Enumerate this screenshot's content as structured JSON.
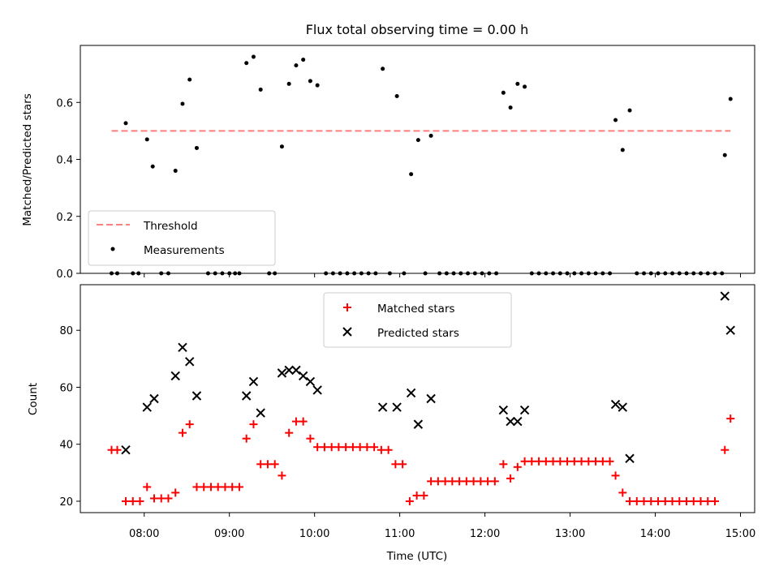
{
  "chart_data": [
    {
      "type": "scatter",
      "title": "Flux total observing time = 0.00 h",
      "xlabel": "",
      "ylabel": "Matched/Predicted stars",
      "xlim": [
        "07:15",
        "15:10"
      ],
      "ylim": [
        0,
        0.8
      ],
      "yticks": [
        "0.0",
        "0.2",
        "0.4",
        "0.6"
      ],
      "grid": false,
      "legend_position": "lower-left",
      "threshold": {
        "name": "Threshold",
        "value": 0.5,
        "x_start": "07:37",
        "x_end": "14:53",
        "color": "#ff7f7f",
        "style": "dashed"
      },
      "series": [
        {
          "name": "Measurements",
          "color": "#000000",
          "marker": "dot",
          "points": [
            [
              "07:37",
              0
            ],
            [
              "07:41",
              0
            ],
            [
              "07:47",
              0.527
            ],
            [
              "07:52",
              0
            ],
            [
              "07:56",
              0
            ],
            [
              "08:02",
              0.47
            ],
            [
              "08:06",
              0.375
            ],
            [
              "08:12",
              0
            ],
            [
              "08:17",
              0
            ],
            [
              "08:22",
              0.36
            ],
            [
              "08:27",
              0.595
            ],
            [
              "08:32",
              0.68
            ],
            [
              "08:37",
              0.44
            ],
            [
              "08:45",
              0
            ],
            [
              "08:50",
              0
            ],
            [
              "08:55",
              0
            ],
            [
              "09:00",
              0
            ],
            [
              "09:04",
              0
            ],
            [
              "09:07",
              0
            ],
            [
              "09:12",
              0.738
            ],
            [
              "09:17",
              0.76
            ],
            [
              "09:22",
              0.645
            ],
            [
              "09:28",
              0
            ],
            [
              "09:32",
              0
            ],
            [
              "09:37",
              0.445
            ],
            [
              "09:42",
              0.665
            ],
            [
              "09:47",
              0.73
            ],
            [
              "09:52",
              0.75
            ],
            [
              "09:57",
              0.675
            ],
            [
              "10:02",
              0.66
            ],
            [
              "10:08",
              0
            ],
            [
              "10:13",
              0
            ],
            [
              "10:18",
              0
            ],
            [
              "10:23",
              0
            ],
            [
              "10:28",
              0
            ],
            [
              "10:33",
              0
            ],
            [
              "10:38",
              0
            ],
            [
              "10:43",
              0
            ],
            [
              "10:48",
              0.718
            ],
            [
              "10:53",
              0
            ],
            [
              "10:58",
              0.622
            ],
            [
              "11:03",
              0
            ],
            [
              "11:08",
              0.348
            ],
            [
              "11:13",
              0.468
            ],
            [
              "11:18",
              0
            ],
            [
              "11:22",
              0.483
            ],
            [
              "11:28",
              0
            ],
            [
              "11:33",
              0
            ],
            [
              "11:38",
              0
            ],
            [
              "11:43",
              0
            ],
            [
              "11:48",
              0
            ],
            [
              "11:53",
              0
            ],
            [
              "11:58",
              0
            ],
            [
              "12:03",
              0
            ],
            [
              "12:08",
              0
            ],
            [
              "12:13",
              0.634
            ],
            [
              "12:18",
              0.582
            ],
            [
              "12:23",
              0.665
            ],
            [
              "12:28",
              0.655
            ],
            [
              "12:33",
              0
            ],
            [
              "12:38",
              0
            ],
            [
              "12:43",
              0
            ],
            [
              "12:48",
              0
            ],
            [
              "12:53",
              0
            ],
            [
              "12:58",
              0
            ],
            [
              "13:03",
              0
            ],
            [
              "13:08",
              0
            ],
            [
              "13:13",
              0
            ],
            [
              "13:18",
              0
            ],
            [
              "13:23",
              0
            ],
            [
              "13:28",
              0
            ],
            [
              "13:32",
              0.538
            ],
            [
              "13:37",
              0.433
            ],
            [
              "13:42",
              0.572
            ],
            [
              "13:47",
              0
            ],
            [
              "13:52",
              0
            ],
            [
              "13:57",
              0
            ],
            [
              "14:02",
              0
            ],
            [
              "14:07",
              0
            ],
            [
              "14:12",
              0
            ],
            [
              "14:17",
              0
            ],
            [
              "14:22",
              0
            ],
            [
              "14:27",
              0
            ],
            [
              "14:32",
              0
            ],
            [
              "14:37",
              0
            ],
            [
              "14:42",
              0
            ],
            [
              "14:47",
              0
            ],
            [
              "14:49",
              0.415
            ],
            [
              "14:53",
              0.612
            ]
          ]
        }
      ]
    },
    {
      "type": "scatter",
      "title": "",
      "xlabel": "Time (UTC)",
      "ylabel": "Count",
      "xlim": [
        "07:15",
        "15:10"
      ],
      "ylim": [
        16,
        96
      ],
      "xticks": [
        "08:00",
        "09:00",
        "10:00",
        "11:00",
        "12:00",
        "13:00",
        "14:00",
        "15:00"
      ],
      "yticks": [
        "20",
        "40",
        "60",
        "80"
      ],
      "grid": false,
      "legend_position": "upper-center",
      "series": [
        {
          "name": "Matched stars",
          "color": "#ff0000",
          "marker": "plus",
          "points": [
            [
              "07:37",
              38
            ],
            [
              "07:41",
              38
            ],
            [
              "07:47",
              20
            ],
            [
              "07:52",
              20
            ],
            [
              "07:57",
              20
            ],
            [
              "08:02",
              25
            ],
            [
              "08:07",
              21
            ],
            [
              "08:12",
              21
            ],
            [
              "08:17",
              21
            ],
            [
              "08:22",
              23
            ],
            [
              "08:27",
              44
            ],
            [
              "08:32",
              47
            ],
            [
              "08:37",
              25
            ],
            [
              "08:42",
              25
            ],
            [
              "08:47",
              25
            ],
            [
              "08:52",
              25
            ],
            [
              "08:57",
              25
            ],
            [
              "09:02",
              25
            ],
            [
              "09:07",
              25
            ],
            [
              "09:12",
              42
            ],
            [
              "09:17",
              47
            ],
            [
              "09:22",
              33
            ],
            [
              "09:27",
              33
            ],
            [
              "09:32",
              33
            ],
            [
              "09:37",
              29
            ],
            [
              "09:42",
              44
            ],
            [
              "09:47",
              48
            ],
            [
              "09:52",
              48
            ],
            [
              "09:57",
              42
            ],
            [
              "10:02",
              39
            ],
            [
              "10:07",
              39
            ],
            [
              "10:12",
              39
            ],
            [
              "10:17",
              39
            ],
            [
              "10:22",
              39
            ],
            [
              "10:27",
              39
            ],
            [
              "10:32",
              39
            ],
            [
              "10:37",
              39
            ],
            [
              "10:42",
              39
            ],
            [
              "10:47",
              38
            ],
            [
              "10:52",
              38
            ],
            [
              "10:57",
              33
            ],
            [
              "11:02",
              33
            ],
            [
              "11:07",
              20
            ],
            [
              "11:12",
              22
            ],
            [
              "11:17",
              22
            ],
            [
              "11:22",
              27
            ],
            [
              "11:27",
              27
            ],
            [
              "11:32",
              27
            ],
            [
              "11:37",
              27
            ],
            [
              "11:42",
              27
            ],
            [
              "11:47",
              27
            ],
            [
              "11:52",
              27
            ],
            [
              "11:57",
              27
            ],
            [
              "12:02",
              27
            ],
            [
              "12:07",
              27
            ],
            [
              "12:13",
              33
            ],
            [
              "12:18",
              28
            ],
            [
              "12:23",
              32
            ],
            [
              "12:28",
              34
            ],
            [
              "12:33",
              34
            ],
            [
              "12:38",
              34
            ],
            [
              "12:43",
              34
            ],
            [
              "12:48",
              34
            ],
            [
              "12:53",
              34
            ],
            [
              "12:58",
              34
            ],
            [
              "13:03",
              34
            ],
            [
              "13:08",
              34
            ],
            [
              "13:13",
              34
            ],
            [
              "13:18",
              34
            ],
            [
              "13:23",
              34
            ],
            [
              "13:28",
              34
            ],
            [
              "13:32",
              29
            ],
            [
              "13:37",
              23
            ],
            [
              "13:42",
              20
            ],
            [
              "13:47",
              20
            ],
            [
              "13:52",
              20
            ],
            [
              "13:57",
              20
            ],
            [
              "14:02",
              20
            ],
            [
              "14:07",
              20
            ],
            [
              "14:12",
              20
            ],
            [
              "14:17",
              20
            ],
            [
              "14:22",
              20
            ],
            [
              "14:27",
              20
            ],
            [
              "14:32",
              20
            ],
            [
              "14:37",
              20
            ],
            [
              "14:42",
              20
            ],
            [
              "14:49",
              38
            ],
            [
              "14:53",
              49
            ]
          ]
        },
        {
          "name": "Predicted stars",
          "color": "#000000",
          "marker": "x",
          "points": [
            [
              "07:47",
              38
            ],
            [
              "08:02",
              53
            ],
            [
              "08:07",
              56
            ],
            [
              "08:22",
              64
            ],
            [
              "08:27",
              74
            ],
            [
              "08:32",
              69
            ],
            [
              "08:37",
              57
            ],
            [
              "09:12",
              57
            ],
            [
              "09:17",
              62
            ],
            [
              "09:22",
              51
            ],
            [
              "09:37",
              65
            ],
            [
              "09:42",
              66
            ],
            [
              "09:47",
              66
            ],
            [
              "09:52",
              64
            ],
            [
              "09:57",
              62
            ],
            [
              "10:02",
              59
            ],
            [
              "10:48",
              53
            ],
            [
              "10:58",
              53
            ],
            [
              "11:08",
              58
            ],
            [
              "11:13",
              47
            ],
            [
              "11:22",
              56
            ],
            [
              "12:13",
              52
            ],
            [
              "12:18",
              48
            ],
            [
              "12:23",
              48
            ],
            [
              "12:28",
              52
            ],
            [
              "13:32",
              54
            ],
            [
              "13:37",
              53
            ],
            [
              "13:42",
              35
            ],
            [
              "14:49",
              92
            ],
            [
              "14:53",
              80
            ]
          ]
        }
      ]
    }
  ]
}
